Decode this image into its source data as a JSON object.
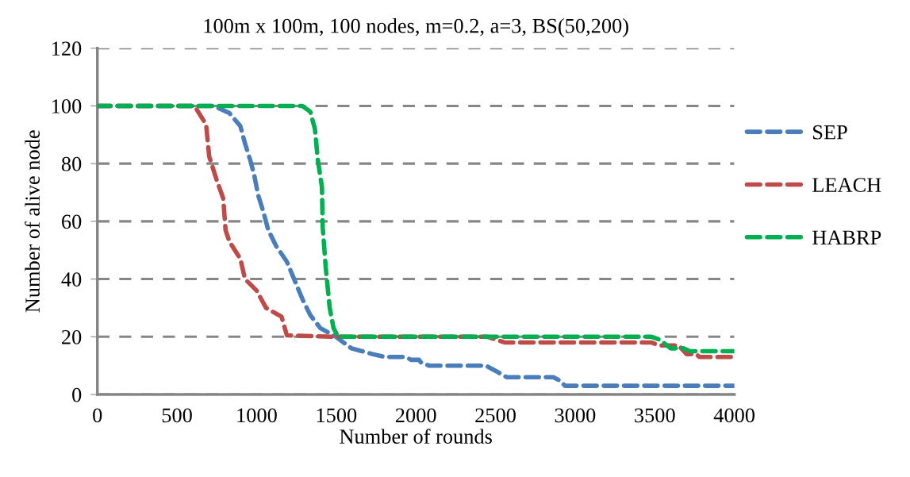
{
  "chart_data": {
    "type": "line",
    "title": "100m x 100m, 100 nodes, m=0.2, a=3, BS(50,200)",
    "xlabel": "Number of rounds",
    "ylabel": "Number of alive node",
    "xlim": [
      0,
      4000
    ],
    "xticks": [
      0,
      500,
      1000,
      1500,
      2000,
      2500,
      3000,
      3500,
      4000
    ],
    "ylim": [
      0,
      120
    ],
    "yticks": [
      0,
      20,
      40,
      60,
      80,
      100,
      120
    ],
    "grid": "y",
    "legend": "right",
    "line_style": "dashed",
    "marker": "none",
    "series": [
      {
        "name": "SEP",
        "color": "#4a7ebb",
        "x": [
          0,
          732,
          829,
          898,
          927,
          961,
          985,
          1010,
          1044,
          1073,
          1122,
          1190,
          1239,
          1288,
          1337,
          1400,
          1498,
          1595,
          1727,
          1805,
          1937,
          1970,
          2020,
          2034,
          2083,
          2439,
          2507,
          2570,
          2863,
          2897,
          2937,
          4000
        ],
        "values": [
          100,
          100,
          97.5,
          93,
          87,
          81,
          76,
          69,
          63,
          57,
          51.5,
          46,
          39.5,
          33,
          27.5,
          23,
          20,
          16,
          14,
          13,
          13,
          12,
          12,
          11,
          10,
          10,
          8,
          6,
          6,
          5,
          3,
          3
        ]
      },
      {
        "name": "LEACH",
        "color": "#be4b48",
        "x": [
          0,
          610,
          683,
          702,
          751,
          790,
          805,
          829,
          898,
          927,
          1000,
          1059,
          1156,
          1190,
          1483,
          2450,
          2560,
          3480,
          3530,
          3650,
          3700,
          3760,
          3780,
          4000
        ],
        "values": [
          100,
          100,
          93.5,
          82.5,
          74,
          68,
          57,
          53,
          47,
          40,
          36,
          30,
          27,
          20.5,
          20,
          20,
          18,
          18,
          17,
          17,
          14,
          14,
          13,
          13
        ]
      },
      {
        "name": "HABRP",
        "color": "#00b050",
        "x": [
          0,
          1287,
          1337,
          1366,
          1385,
          1410,
          1415,
          1434,
          1459,
          1483,
          1512,
          3480,
          3530,
          3600,
          3680,
          3720,
          4000
        ],
        "values": [
          100,
          100,
          98,
          92,
          81,
          72,
          58,
          44,
          30,
          23,
          20,
          20,
          19,
          16,
          16,
          15,
          15
        ]
      }
    ]
  }
}
